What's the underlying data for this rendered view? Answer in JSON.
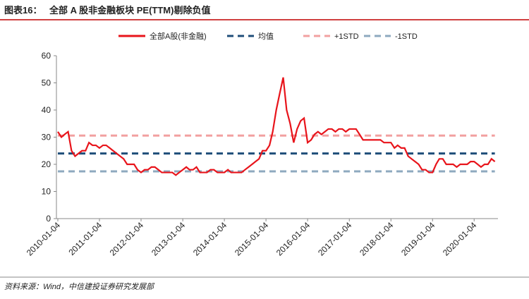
{
  "chart_data": {
    "type": "line",
    "figure_label": "图表16：",
    "title": "全部 A 股非金融板块 PE(TTM)剔除负值",
    "source": "资料来源：Wind，中信建投证券研究发展部",
    "xlim": [
      "2010-01-04",
      "2020-07-31"
    ],
    "xticks": [
      "2010-01-04",
      "2011-01-04",
      "2012-01-04",
      "2013-01-04",
      "2014-01-04",
      "2015-01-04",
      "2016-01-04",
      "2017-01-04",
      "2018-01-04",
      "2019-01-04",
      "2020-01-04"
    ],
    "ylim": [
      0,
      60
    ],
    "yticks": [
      0,
      10,
      20,
      30,
      40,
      50,
      60
    ],
    "series": [
      {
        "name": "全部A股(非金融)",
        "color": "#e8141b",
        "dash": false,
        "x": [
          "2010-01-04",
          "2010-02-04",
          "2010-03-04",
          "2010-04-04",
          "2010-05-04",
          "2010-06-04",
          "2010-07-04",
          "2010-08-04",
          "2010-09-04",
          "2010-10-04",
          "2010-11-04",
          "2010-12-04",
          "2011-01-04",
          "2011-02-04",
          "2011-03-04",
          "2011-04-04",
          "2011-05-04",
          "2011-06-04",
          "2011-07-04",
          "2011-08-04",
          "2011-09-04",
          "2011-10-04",
          "2011-11-04",
          "2011-12-04",
          "2012-01-04",
          "2012-02-04",
          "2012-03-04",
          "2012-04-04",
          "2012-05-04",
          "2012-06-04",
          "2012-07-04",
          "2012-08-04",
          "2012-09-04",
          "2012-10-04",
          "2012-11-04",
          "2012-12-04",
          "2013-01-04",
          "2013-02-04",
          "2013-03-04",
          "2013-04-04",
          "2013-05-04",
          "2013-06-04",
          "2013-07-04",
          "2013-08-04",
          "2013-09-04",
          "2013-10-04",
          "2013-11-04",
          "2013-12-04",
          "2014-01-04",
          "2014-02-04",
          "2014-03-04",
          "2014-04-04",
          "2014-05-04",
          "2014-06-04",
          "2014-07-04",
          "2014-08-04",
          "2014-09-04",
          "2014-10-04",
          "2014-11-04",
          "2014-12-04",
          "2015-01-04",
          "2015-02-04",
          "2015-03-04",
          "2015-04-04",
          "2015-05-04",
          "2015-06-04",
          "2015-07-04",
          "2015-08-04",
          "2015-09-04",
          "2015-10-04",
          "2015-11-04",
          "2015-12-04",
          "2016-01-04",
          "2016-02-04",
          "2016-03-04",
          "2016-04-04",
          "2016-05-04",
          "2016-06-04",
          "2016-07-04",
          "2016-08-04",
          "2016-09-04",
          "2016-10-04",
          "2016-11-04",
          "2016-12-04",
          "2017-01-04",
          "2017-02-04",
          "2017-03-04",
          "2017-04-04",
          "2017-05-04",
          "2017-06-04",
          "2017-07-04",
          "2017-08-04",
          "2017-09-04",
          "2017-10-04",
          "2017-11-04",
          "2017-12-04",
          "2018-01-04",
          "2018-02-04",
          "2018-03-04",
          "2018-04-04",
          "2018-05-04",
          "2018-06-04",
          "2018-07-04",
          "2018-08-04",
          "2018-09-04",
          "2018-10-04",
          "2018-11-04",
          "2018-12-04",
          "2019-01-04",
          "2019-02-04",
          "2019-03-04",
          "2019-04-04",
          "2019-05-04",
          "2019-06-04",
          "2019-07-04",
          "2019-08-04",
          "2019-09-04",
          "2019-10-04",
          "2019-11-04",
          "2019-12-04",
          "2020-01-04",
          "2020-02-04",
          "2020-03-04",
          "2020-04-04",
          "2020-05-04",
          "2020-06-04",
          "2020-07-04"
        ],
        "values": [
          32,
          30,
          31,
          32,
          25,
          23,
          24,
          25,
          25,
          28,
          27,
          27,
          26,
          27,
          27,
          26,
          25,
          24,
          23,
          22,
          20,
          20,
          20,
          18,
          17,
          18,
          18,
          19,
          19,
          18,
          17,
          17,
          17,
          17,
          16,
          17,
          18,
          19,
          18,
          18,
          19,
          17,
          17,
          17,
          18,
          18,
          17,
          17,
          17,
          18,
          17,
          17,
          17,
          17,
          18,
          19,
          20,
          21,
          22,
          25,
          25,
          27,
          32,
          40,
          46,
          52,
          40,
          35,
          28,
          33,
          36,
          37,
          28,
          29,
          31,
          32,
          31,
          32,
          33,
          33,
          32,
          33,
          33,
          32,
          33,
          33,
          33,
          31,
          29,
          29,
          29,
          29,
          29,
          29,
          28,
          28,
          28,
          26,
          27,
          26,
          26,
          23,
          22,
          21,
          20,
          18,
          18,
          17,
          17,
          20,
          22,
          22,
          20,
          20,
          20,
          19,
          20,
          20,
          20,
          21,
          21,
          20,
          19,
          20,
          20,
          22,
          21
        ]
      },
      {
        "name": "均值",
        "color": "#1f4e79",
        "dash": true,
        "x": [
          "2010-01-04",
          "2020-07-04"
        ],
        "values": [
          24,
          24
        ]
      },
      {
        "name": "+1STD",
        "color": "#f2a0a0",
        "dash": true,
        "x": [
          "2010-01-04",
          "2020-07-04"
        ],
        "values": [
          30.6,
          30.6
        ]
      },
      {
        "name": "-1STD",
        "color": "#8ea9bf",
        "dash": true,
        "x": [
          "2010-01-04",
          "2020-07-04"
        ],
        "values": [
          17.4,
          17.4
        ]
      }
    ]
  }
}
